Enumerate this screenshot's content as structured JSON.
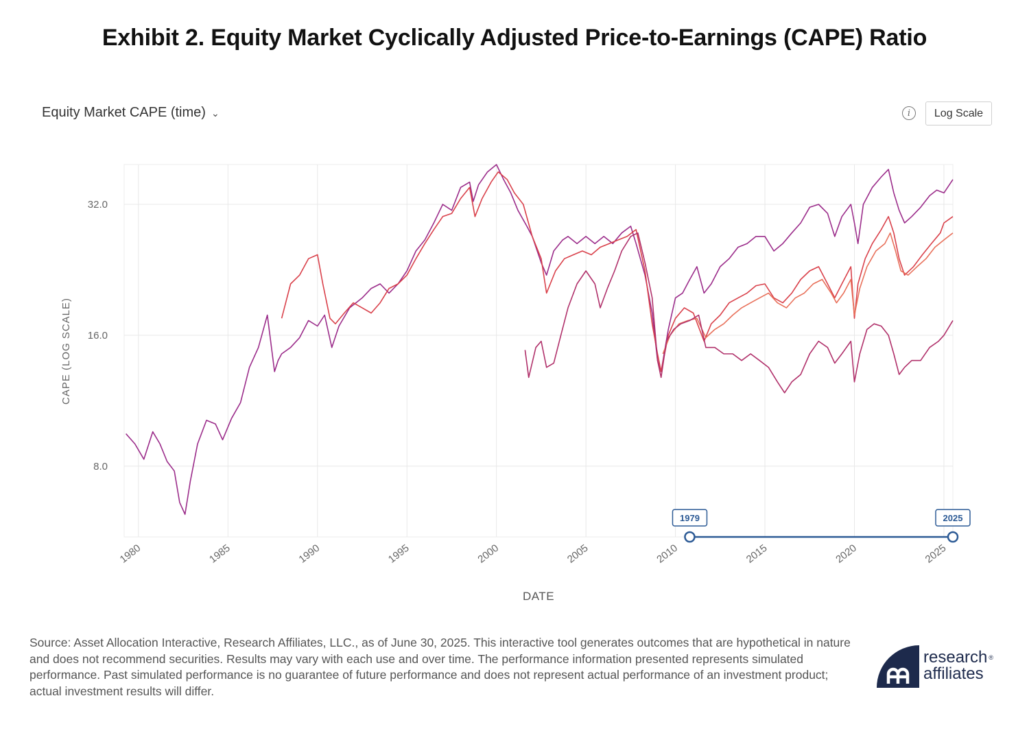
{
  "page": {
    "title": "Exhibit 2. Equity Market Cyclically Adjusted Price-to-Earnings (CAPE) Ratio",
    "selector_label": "Equity Market CAPE (time)",
    "scale_button_label": "Log Scale",
    "info_icon": "info-icon",
    "chevron_icon": "chevron-down-icon",
    "footnote": "Source: Asset Allocation Interactive, Research Affiliates, LLC., as of June 30, 2025. This interactive tool generates outcomes that are hypothetical in nature and does not recommend securities. Results may vary with each use and over time. The performance information presented represents simulated performance. Past simulated performance is no guarantee of future performance and does not represent actual performance of an investment product; actual investment results will differ.",
    "logo": {
      "line1": "research",
      "line2": "affiliates",
      "color": "#1d2a4c"
    }
  },
  "chart_data": {
    "type": "line",
    "xlabel": "DATE",
    "ylabel": "CAPE (LOG SCALE)",
    "log_scale": true,
    "grid": true,
    "xlim": [
      1979.2,
      2025.5
    ],
    "ylim": [
      5.5,
      39.5
    ],
    "x_ticks": [
      1980,
      1985,
      1990,
      1995,
      2000,
      2005,
      2010,
      2015,
      2020,
      2025
    ],
    "y_ticks": [
      8.0,
      16.0,
      32.0
    ],
    "range_slider": {
      "start_label": "1979",
      "end_label": "2025",
      "color": "#2c5a95"
    },
    "series": [
      {
        "color": "#9b2c8a",
        "x": [
          1979.3,
          1979.8,
          1980.3,
          1980.8,
          1981.2,
          1981.6,
          1982.0,
          1982.3,
          1982.6,
          1982.9,
          1983.3,
          1983.8,
          1984.3,
          1984.7,
          1985.2,
          1985.7,
          1986.2,
          1986.7,
          1987.2,
          1987.6,
          1987.8,
          1988.0,
          1988.5,
          1989.0,
          1989.5,
          1990.0,
          1990.4,
          1990.8,
          1991.2,
          1991.8,
          1992.5,
          1993.0,
          1993.5,
          1994.0,
          1994.5,
          1995.0,
          1995.5,
          1996.0,
          1996.5,
          1997.0,
          1997.5,
          1998.0,
          1998.5,
          1998.7,
          1999.0,
          1999.5,
          2000.0,
          2000.4,
          2000.8,
          2001.2,
          2001.7,
          2002.0,
          2002.5,
          2002.8,
          2003.2,
          2003.7,
          2004.0,
          2004.5,
          2005.0,
          2005.5,
          2006.0,
          2006.5,
          2007.0,
          2007.5,
          2007.8,
          2008.3,
          2008.7,
          2009.0,
          2009.2,
          2009.6,
          2010.0,
          2010.4,
          2010.8,
          2011.2,
          2011.6,
          2012.0,
          2012.5,
          2013.0,
          2013.5,
          2014.0,
          2014.5,
          2015.0,
          2015.5,
          2016.0,
          2016.5,
          2017.0,
          2017.5,
          2018.0,
          2018.5,
          2018.9,
          2019.3,
          2019.8,
          2020.0,
          2020.2,
          2020.5,
          2021.0,
          2021.5,
          2021.9,
          2022.2,
          2022.5,
          2022.8,
          2023.2,
          2023.7,
          2024.2,
          2024.6,
          2025.0,
          2025.5
        ],
        "y": [
          9.5,
          9.0,
          8.3,
          9.6,
          9.0,
          8.2,
          7.8,
          6.6,
          6.2,
          7.4,
          9.0,
          10.2,
          10.0,
          9.2,
          10.3,
          11.2,
          13.5,
          15.0,
          17.8,
          13.2,
          14.0,
          14.5,
          15.0,
          15.8,
          17.3,
          16.8,
          17.8,
          15.0,
          16.8,
          18.5,
          19.5,
          20.5,
          21.0,
          20.0,
          21.0,
          22.5,
          25.0,
          26.5,
          29.0,
          32.0,
          31.0,
          35.0,
          36.0,
          32.5,
          35.5,
          38.0,
          39.5,
          36.5,
          34.0,
          31.0,
          28.5,
          27.0,
          23.5,
          22.0,
          25.0,
          26.5,
          27.0,
          26.0,
          27.0,
          26.0,
          27.0,
          26.0,
          27.5,
          28.5,
          26.0,
          22.0,
          18.0,
          14.0,
          13.2,
          16.5,
          19.5,
          20.0,
          21.5,
          23.0,
          20.0,
          21.0,
          23.0,
          24.0,
          25.5,
          26.0,
          27.0,
          27.0,
          25.0,
          26.0,
          27.5,
          29.0,
          31.5,
          32.0,
          30.5,
          27.0,
          30.0,
          32.0,
          29.0,
          26.0,
          32.0,
          35.0,
          37.0,
          38.5,
          34.0,
          31.0,
          29.0,
          30.0,
          31.5,
          33.5,
          34.5,
          34.0,
          36.5
        ]
      },
      {
        "color": "#d9404a",
        "x": [
          1988.0,
          1988.5,
          1989.0,
          1989.5,
          1990.0,
          1990.3,
          1990.7,
          1991.0,
          1991.5,
          1992.0,
          1992.5,
          1993.0,
          1993.5,
          1994.0,
          1994.5,
          1995.0,
          1995.5,
          1996.0,
          1996.5,
          1997.0,
          1997.5,
          1998.0,
          1998.5,
          1998.8,
          1999.2,
          1999.7,
          2000.1,
          2000.6,
          2001.0,
          2001.5,
          2002.0,
          2002.5,
          2002.8,
          2003.3,
          2003.8,
          2004.3,
          2004.8,
          2005.3,
          2005.8,
          2006.3,
          2006.8,
          2007.3,
          2007.8,
          2008.3,
          2008.7,
          2009.0,
          2009.2,
          2009.6,
          2010.0,
          2010.5,
          2011.0,
          2011.6,
          2012.0,
          2012.5,
          2013.0,
          2013.5,
          2014.0,
          2014.5,
          2015.0,
          2015.5,
          2016.0,
          2016.5,
          2017.0,
          2017.5,
          2018.0,
          2018.5,
          2018.9,
          2019.3,
          2019.8,
          2020.0,
          2020.2,
          2020.6,
          2021.0,
          2021.5,
          2021.9,
          2022.2,
          2022.5,
          2022.8,
          2023.3,
          2023.8,
          2024.3,
          2024.8,
          2025.0,
          2025.5
        ],
        "y": [
          17.5,
          21.0,
          22.0,
          24.0,
          24.5,
          21.0,
          17.5,
          17.0,
          18.0,
          19.0,
          18.5,
          18.0,
          19.0,
          20.5,
          21.0,
          22.0,
          24.0,
          26.0,
          28.0,
          30.0,
          30.5,
          33.0,
          35.0,
          30.0,
          33.0,
          36.0,
          38.0,
          36.5,
          34.0,
          32.0,
          27.0,
          24.0,
          20.0,
          22.5,
          24.0,
          24.5,
          25.0,
          24.5,
          25.5,
          26.0,
          26.5,
          27.0,
          28.0,
          22.5,
          17.0,
          14.5,
          13.2,
          16.0,
          17.5,
          18.5,
          18.0,
          15.5,
          17.0,
          17.8,
          19.0,
          19.5,
          20.0,
          20.8,
          21.0,
          19.5,
          19.0,
          20.0,
          21.5,
          22.5,
          23.0,
          21.0,
          19.5,
          21.0,
          23.0,
          17.5,
          21.0,
          24.0,
          26.0,
          28.0,
          30.0,
          27.5,
          24.0,
          22.0,
          23.0,
          24.5,
          26.0,
          27.5,
          29.0,
          30.0
        ]
      },
      {
        "color": "#e8705a",
        "x": [
          2009.3,
          2009.7,
          2010.2,
          2010.7,
          2011.2,
          2011.7,
          2012.2,
          2012.7,
          2013.2,
          2013.7,
          2014.2,
          2014.7,
          2015.2,
          2015.7,
          2016.2,
          2016.7,
          2017.2,
          2017.7,
          2018.2,
          2018.7,
          2019.0,
          2019.4,
          2019.8,
          2020.0,
          2020.3,
          2020.7,
          2021.2,
          2021.7,
          2022.0,
          2022.3,
          2022.6,
          2023.0,
          2023.5,
          2024.0,
          2024.5,
          2025.0,
          2025.5
        ],
        "y": [
          14.5,
          16.0,
          17.0,
          17.3,
          17.5,
          15.8,
          16.5,
          17.0,
          17.8,
          18.5,
          19.0,
          19.5,
          20.0,
          19.0,
          18.5,
          19.5,
          20.0,
          21.0,
          21.5,
          20.0,
          19.0,
          20.0,
          21.5,
          17.8,
          20.5,
          23.0,
          25.0,
          26.0,
          27.5,
          25.0,
          22.5,
          22.0,
          23.0,
          24.0,
          25.5,
          26.5,
          27.5
        ]
      },
      {
        "color": "#b0306a",
        "x": [
          2001.6,
          2001.8,
          2002.2,
          2002.5,
          2002.8,
          2003.2,
          2003.6,
          2004.0,
          2004.5,
          2005.0,
          2005.5,
          2005.8,
          2006.2,
          2006.6,
          2007.0,
          2007.5,
          2007.9,
          2008.3,
          2008.7,
          2009.0,
          2009.2,
          2009.5,
          2009.9,
          2010.3,
          2010.8,
          2011.3,
          2011.7,
          2012.2,
          2012.7,
          2013.2,
          2013.7,
          2014.2,
          2014.7,
          2015.2,
          2015.7,
          2016.1,
          2016.5,
          2017.0,
          2017.5,
          2018.0,
          2018.5,
          2018.9,
          2019.3,
          2019.8,
          2020.0,
          2020.3,
          2020.7,
          2021.1,
          2021.5,
          2021.9,
          2022.2,
          2022.5,
          2022.8,
          2023.2,
          2023.7,
          2024.2,
          2024.7,
          2025.0,
          2025.5
        ],
        "y": [
          14.8,
          12.8,
          15.0,
          15.5,
          13.5,
          13.8,
          16.0,
          18.5,
          21.0,
          22.5,
          21.0,
          18.5,
          20.5,
          22.5,
          25.0,
          27.0,
          27.5,
          23.5,
          19.5,
          14.0,
          12.8,
          15.5,
          16.5,
          17.0,
          17.3,
          17.8,
          15.0,
          15.0,
          14.5,
          14.5,
          14.0,
          14.5,
          14.0,
          13.5,
          12.5,
          11.8,
          12.5,
          13.0,
          14.5,
          15.5,
          15.0,
          13.8,
          14.5,
          15.5,
          12.5,
          14.5,
          16.5,
          17.0,
          16.8,
          16.0,
          14.5,
          13.0,
          13.5,
          14.0,
          14.0,
          15.0,
          15.5,
          16.0,
          17.3
        ]
      }
    ]
  }
}
